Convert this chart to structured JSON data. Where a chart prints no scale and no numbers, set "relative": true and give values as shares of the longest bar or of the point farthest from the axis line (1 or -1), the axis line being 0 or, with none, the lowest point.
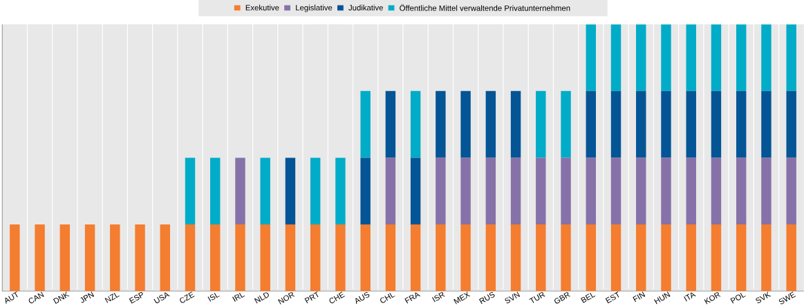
{
  "chart_data": {
    "type": "bar",
    "stacked": true,
    "relative": true,
    "legend": "top",
    "grid": "x",
    "categories": [
      "AUT",
      "CAN",
      "DNK",
      "JPN",
      "NZL",
      "ESP",
      "USA",
      "CZE",
      "ISL",
      "IRL",
      "NLD",
      "NOR",
      "PRT",
      "CHE",
      "AUS",
      "CHL",
      "FRA",
      "ISR",
      "MEX",
      "RUS",
      "SVN",
      "TUR",
      "GBR",
      "BEL",
      "EST",
      "FIN",
      "HUN",
      "ITA",
      "KOR",
      "POL",
      "SVK",
      "SWE"
    ],
    "series": [
      {
        "name": "Exekutive",
        "color": "#f47d30",
        "values": [
          0.25,
          0.25,
          0.25,
          0.25,
          0.25,
          0.25,
          0.25,
          0.25,
          0.25,
          0.25,
          0.25,
          0.25,
          0.25,
          0.25,
          0.25,
          0.25,
          0.25,
          0.25,
          0.25,
          0.25,
          0.25,
          0.25,
          0.25,
          0.25,
          0.25,
          0.25,
          0.25,
          0.25,
          0.25,
          0.25,
          0.25,
          0.25
        ]
      },
      {
        "name": "Legislative",
        "color": "#8672a8",
        "values": [
          0,
          0,
          0,
          0,
          0,
          0,
          0,
          0,
          0,
          0.25,
          0,
          0,
          0,
          0,
          0,
          0.25,
          0,
          0.25,
          0.25,
          0.25,
          0.25,
          0.25,
          0.25,
          0.25,
          0.25,
          0.25,
          0.25,
          0.25,
          0.25,
          0.25,
          0.25,
          0.25
        ]
      },
      {
        "name": "Judikative",
        "color": "#035596",
        "values": [
          0,
          0,
          0,
          0,
          0,
          0,
          0,
          0,
          0,
          0,
          0,
          0.25,
          0,
          0,
          0.25,
          0.25,
          0.25,
          0.25,
          0.25,
          0.25,
          0.25,
          0,
          0,
          0.25,
          0.25,
          0.25,
          0.25,
          0.25,
          0.25,
          0.25,
          0.25,
          0.25
        ]
      },
      {
        "name": "Öffentliche Mittel verwaltende Privatunternehmen",
        "color": "#00acc8",
        "values": [
          0,
          0,
          0,
          0,
          0,
          0,
          0,
          0.25,
          0.25,
          0,
          0.25,
          0,
          0.25,
          0.25,
          0.25,
          0,
          0.25,
          0,
          0,
          0,
          0,
          0.25,
          0.25,
          0.25,
          0.25,
          0.25,
          0.25,
          0.25,
          0.25,
          0.25,
          0.25,
          0.25
        ]
      }
    ]
  }
}
